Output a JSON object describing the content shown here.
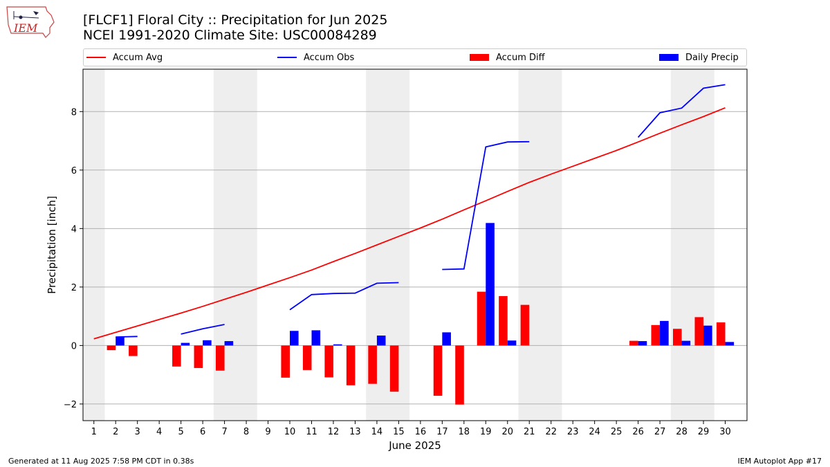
{
  "header": {
    "title_line1": "[FLCF1] Floral City :: Precipitation for Jun 2025",
    "title_line2": "NCEI 1991-2020 Climate Site: USC00084289",
    "logo_text": "IEM"
  },
  "footer": {
    "left": "Generated at 11 Aug 2025 7:58 PM CDT in 0.38s",
    "right": "IEM Autoplot App #17"
  },
  "colors": {
    "accum_avg": "#ff0000",
    "accum_obs": "#0000ff",
    "accum_diff": "#ff0000",
    "daily_precip": "#0000ff",
    "weekend_shade": "#eeeeee",
    "grid": "#b0b0b0"
  },
  "chart_data": {
    "type": "bar+line",
    "xlabel": "June 2025",
    "ylabel": "Precipitation [inch]",
    "xlim": [
      0.5,
      31.0
    ],
    "ylim": [
      -2.57,
      9.45
    ],
    "x_ticks": [
      1,
      2,
      3,
      4,
      5,
      6,
      7,
      8,
      9,
      10,
      11,
      12,
      13,
      14,
      15,
      16,
      17,
      18,
      19,
      20,
      21,
      22,
      23,
      24,
      25,
      26,
      27,
      28,
      29,
      30
    ],
    "y_ticks": [
      -2,
      0,
      2,
      4,
      6,
      8
    ],
    "y_grid": true,
    "legend_position": "top, above plot",
    "weekend_days": [
      1,
      7,
      8,
      14,
      15,
      21,
      22,
      28,
      29
    ],
    "series": [
      {
        "name": "Accum Avg",
        "kind": "line",
        "x": [
          1,
          2,
          3,
          4,
          5,
          6,
          7,
          8,
          9,
          10,
          11,
          12,
          13,
          14,
          15,
          16,
          17,
          18,
          19,
          20,
          21,
          22,
          23,
          24,
          25,
          26,
          27,
          28,
          29,
          30
        ],
        "values": [
          0.23,
          0.45,
          0.67,
          0.89,
          1.11,
          1.34,
          1.58,
          1.82,
          2.07,
          2.32,
          2.58,
          2.87,
          3.15,
          3.44,
          3.73,
          4.02,
          4.32,
          4.64,
          4.95,
          5.27,
          5.58,
          5.86,
          6.13,
          6.4,
          6.67,
          6.96,
          7.26,
          7.55,
          7.83,
          8.13
        ]
      },
      {
        "name": "Accum Obs",
        "kind": "line",
        "x": [
          1,
          2,
          3,
          4,
          5,
          6,
          7,
          8,
          9,
          10,
          11,
          12,
          13,
          14,
          15,
          16,
          17,
          18,
          19,
          20,
          21,
          22,
          23,
          24,
          25,
          26,
          27,
          28,
          29,
          30
        ],
        "values": [
          null,
          0.29,
          0.31,
          null,
          0.39,
          0.57,
          0.72,
          null,
          null,
          1.22,
          1.74,
          1.78,
          1.79,
          2.13,
          2.15,
          null,
          2.6,
          2.62,
          6.79,
          6.96,
          6.97,
          null,
          null,
          null,
          null,
          7.12,
          7.96,
          8.12,
          8.8,
          8.92
        ]
      },
      {
        "name": "Accum Diff",
        "kind": "bar",
        "x": [
          1,
          2,
          3,
          4,
          5,
          6,
          7,
          8,
          9,
          10,
          11,
          12,
          13,
          14,
          15,
          16,
          17,
          18,
          19,
          20,
          21,
          22,
          23,
          24,
          25,
          26,
          27,
          28,
          29,
          30
        ],
        "values": [
          null,
          -0.16,
          -0.36,
          null,
          -0.72,
          -0.77,
          -0.86,
          null,
          null,
          -1.1,
          -0.84,
          -1.09,
          -1.36,
          -1.31,
          -1.58,
          null,
          -1.72,
          -2.02,
          1.84,
          1.69,
          1.39,
          null,
          null,
          null,
          null,
          0.16,
          0.7,
          0.57,
          0.97,
          0.79
        ]
      },
      {
        "name": "Daily Precip",
        "kind": "bar",
        "x": [
          1,
          2,
          3,
          4,
          5,
          6,
          7,
          8,
          9,
          10,
          11,
          12,
          13,
          14,
          15,
          16,
          17,
          18,
          19,
          20,
          21,
          22,
          23,
          24,
          25,
          26,
          27,
          28,
          29,
          30
        ],
        "values": [
          0,
          0.29,
          0,
          0,
          0.09,
          0.18,
          0.15,
          0,
          0,
          0.5,
          0.52,
          0.04,
          0,
          0.34,
          0,
          0,
          0.45,
          0,
          4.19,
          0.17,
          0,
          0,
          0,
          0,
          0,
          0.15,
          0.84,
          0.16,
          0.68,
          0.12
        ]
      }
    ]
  }
}
